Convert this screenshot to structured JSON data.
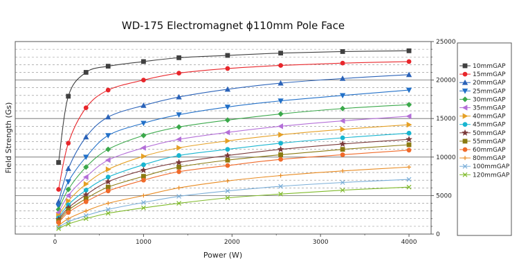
{
  "chart_data": {
    "type": "line",
    "title": "WD-175 Electromagnet ϕ110mm Pole Face",
    "xlabel": "Power (W)",
    "ylabel": "Field Strength (Gs)",
    "xlim": [
      -450,
      4250
    ],
    "ylim": [
      0,
      25000
    ],
    "x_ticks": [
      "0",
      "1000",
      "2000",
      "3000",
      "4000"
    ],
    "y_ticks": [
      "0",
      "5000",
      "10000",
      "15000",
      "20000",
      "25000"
    ],
    "y_axis_side": "right",
    "grid": true,
    "legend_position": "right",
    "x": [
      40,
      150,
      350,
      600,
      1000,
      1400,
      1950,
      2550,
      3250,
      4000
    ],
    "series": [
      {
        "name": "10mmGAP",
        "color": "#404040",
        "marker": "square",
        "values": [
          9300,
          17900,
          21000,
          21800,
          22400,
          22900,
          23200,
          23500,
          23700,
          23800
        ]
      },
      {
        "name": "15mmGAP",
        "color": "#e8262b",
        "marker": "circle",
        "values": [
          5800,
          11800,
          16400,
          18700,
          20000,
          20900,
          21500,
          21900,
          22200,
          22400
        ]
      },
      {
        "name": "20mmGAP",
        "color": "#2a62b8",
        "marker": "triangle-up",
        "values": [
          4200,
          8500,
          12600,
          15200,
          16700,
          17800,
          18800,
          19600,
          20200,
          20700
        ]
      },
      {
        "name": "25mmGAP",
        "color": "#2270c8",
        "marker": "triangle-down",
        "values": [
          3600,
          6800,
          10000,
          12800,
          14400,
          15500,
          16500,
          17300,
          18000,
          18700
        ]
      },
      {
        "name": "30mmGAP",
        "color": "#3aa84a",
        "marker": "diamond",
        "values": [
          3200,
          5800,
          8700,
          11000,
          12800,
          13900,
          14800,
          15600,
          16300,
          16800
        ]
      },
      {
        "name": "35mmGAP",
        "color": "#b46fd8",
        "marker": "triangle-left",
        "values": [
          2800,
          5000,
          7400,
          9600,
          11200,
          12300,
          13200,
          14000,
          14700,
          15300
        ]
      },
      {
        "name": "40mmGAP",
        "color": "#e5a025",
        "marker": "triangle-right",
        "values": [
          2400,
          4300,
          6500,
          8400,
          10100,
          11200,
          12100,
          12900,
          13600,
          14200
        ]
      },
      {
        "name": "45mmGAP",
        "color": "#18b5d0",
        "marker": "circle",
        "values": [
          2100,
          3800,
          5700,
          7400,
          9000,
          10200,
          11000,
          11800,
          12500,
          13100
        ]
      },
      {
        "name": "50mmGAP",
        "color": "#7b3a3a",
        "marker": "star",
        "values": [
          1900,
          3400,
          5100,
          6800,
          8300,
          9300,
          10200,
          11000,
          11700,
          12300
        ]
      },
      {
        "name": "55mmGAP",
        "color": "#8a7a10",
        "marker": "square",
        "values": [
          1700,
          3100,
          4600,
          6100,
          7500,
          8700,
          9600,
          10300,
          11000,
          11600
        ]
      },
      {
        "name": "60mmGAP",
        "color": "#f06a2a",
        "marker": "circle",
        "values": [
          1500,
          2800,
          4200,
          5600,
          7000,
          8100,
          8900,
          9700,
          10300,
          10900
        ]
      },
      {
        "name": "80mmGAP",
        "color": "#e88a20",
        "marker": "plus",
        "values": [
          1100,
          2000,
          3000,
          4000,
          5000,
          6000,
          6900,
          7600,
          8200,
          8700
        ]
      },
      {
        "name": "100mmGAP",
        "color": "#7aaed8",
        "marker": "x",
        "values": [
          900,
          1600,
          2400,
          3200,
          4100,
          4900,
          5600,
          6200,
          6700,
          7100
        ]
      },
      {
        "name": "120mmGAP",
        "color": "#7fba2a",
        "marker": "x",
        "values": [
          700,
          1300,
          2000,
          2700,
          3400,
          4000,
          4700,
          5200,
          5700,
          6100
        ]
      }
    ]
  }
}
